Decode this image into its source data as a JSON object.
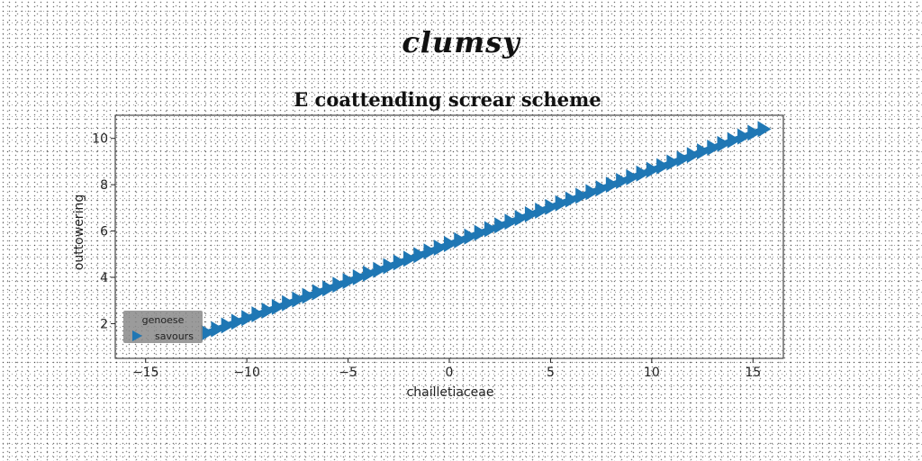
{
  "brand": {
    "text": "clumsy"
  },
  "chart_data": {
    "type": "line",
    "title": "E coattending screar scheme",
    "xlabel": "chailletiaceae",
    "ylabel": "outtowering",
    "xlim": [
      -16.5,
      16.5
    ],
    "ylim": [
      0.5,
      11
    ],
    "xticks": [
      -15,
      -10,
      -5,
      0,
      5,
      10,
      15
    ],
    "xtick_labels": [
      "−15",
      "−10",
      "−5",
      "0",
      "5",
      "10",
      "15"
    ],
    "yticks": [
      2,
      4,
      6,
      8,
      10
    ],
    "ytick_labels": [
      "2",
      "4",
      "6",
      "8",
      "10"
    ],
    "grid": false,
    "series": [
      {
        "name": "savours",
        "color": "#1f77b4",
        "marker": "triangle-right",
        "x_range": [
          -12,
          15.5
        ],
        "y_range": [
          1.6,
          10.4
        ],
        "n_points": 56
      }
    ],
    "legend": {
      "title": "genoese",
      "position": "lower-left"
    }
  }
}
